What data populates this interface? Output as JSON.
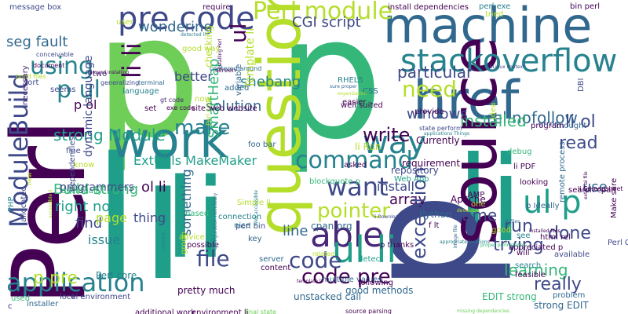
{
  "title": "",
  "palette": {
    "purple": "#440154",
    "deep_purple": "#482878",
    "indigo": "#3e4989",
    "blue": "#31688e",
    "teal_blue": "#26828e",
    "teal": "#1f9e89",
    "green": "#35b779",
    "light_green": "#6ece58",
    "yellow_green": "#b5de2b",
    "yellow": "#fde725"
  },
  "words": [
    {
      "text": "p",
      "color": "#6ece58"
    },
    {
      "text": "p",
      "color": "#35b779"
    },
    {
      "text": "Perl",
      "color": "#440154"
    },
    {
      "text": "li",
      "color": "#1f9e89"
    },
    {
      "text": "li",
      "color": "#1f9e89"
    },
    {
      "text": "li",
      "color": "#1f9e89"
    },
    {
      "text": "p",
      "color": "#3e4989"
    },
    {
      "text": "machine",
      "color": "#31688e"
    },
    {
      "text": "href",
      "color": "#31688e"
    },
    {
      "text": "source",
      "color": "#440154"
    },
    {
      "text": "question",
      "color": "#b5de2b"
    },
    {
      "text": "work",
      "color": "#26828e"
    },
    {
      "text": "stackoverflow",
      "color": "#26828e"
    },
    {
      "text": "pre code",
      "color": "#3e4989"
    },
    {
      "text": "Perl module",
      "color": "#b5de2b"
    },
    {
      "text": "ModuleBuild",
      "color": "#3e4989"
    },
    {
      "text": "ul p",
      "color": "#1f9e89"
    },
    {
      "text": "ul",
      "color": "#440154"
    },
    {
      "text": "able",
      "color": "#482878"
    },
    {
      "text": "application",
      "color": "#26828e"
    },
    {
      "text": "ul li",
      "color": "#1f9e89"
    },
    {
      "text": "way",
      "color": "#26828e"
    },
    {
      "text": "command",
      "color": "#26828e"
    },
    {
      "text": "pointer",
      "color": "#b5de2b"
    },
    {
      "text": "code pre",
      "color": "#440154"
    },
    {
      "text": "file",
      "color": "#3e4989"
    },
    {
      "text": "p ul",
      "color": "#26828e"
    },
    {
      "text": "li li",
      "color": "#440154"
    },
    {
      "text": "using",
      "color": "#26828e"
    },
    {
      "text": "need",
      "color": "#b5de2b"
    },
    {
      "text": "rel nofollow",
      "color": "#31688e"
    },
    {
      "text": "make",
      "color": "#26828e"
    },
    {
      "text": "write",
      "color": "#440154"
    },
    {
      "text": "want",
      "color": "#3e4989"
    },
    {
      "text": "code",
      "color": "#3e4989"
    },
    {
      "text": "p pre",
      "color": "#b5de2b"
    },
    {
      "text": "seg fault",
      "color": "#31688e"
    },
    {
      "text": "wondering",
      "color": "#31688e"
    },
    {
      "text": "CGI script",
      "color": "#3e4989"
    },
    {
      "text": "particular",
      "color": "#3e4989"
    },
    {
      "text": "li ol",
      "color": "#3e4989"
    },
    {
      "text": "strong Module",
      "color": "#1f9e89"
    },
    {
      "text": "shebang",
      "color": "#26828e"
    },
    {
      "text": "solution",
      "color": "#31688e"
    },
    {
      "text": "installed",
      "color": "#35b779"
    },
    {
      "text": "windows",
      "color": "#3e4989"
    },
    {
      "text": "read",
      "color": "#3e4989"
    },
    {
      "text": "Build strong",
      "color": "#35b779"
    },
    {
      "text": "right now",
      "color": "#1f9e89"
    },
    {
      "text": "find",
      "color": "#3e4989"
    },
    {
      "text": "issue",
      "color": "#26828e"
    },
    {
      "text": "thing",
      "color": "#3e4989"
    },
    {
      "text": "array",
      "color": "#440154"
    },
    {
      "text": "exception",
      "color": "#3e4989"
    },
    {
      "text": "run",
      "color": "#3e4989"
    },
    {
      "text": "done",
      "color": "#3e4989"
    },
    {
      "text": "trying",
      "color": "#3e4989"
    },
    {
      "text": "learning",
      "color": "#35b779"
    },
    {
      "text": "really",
      "color": "#3e4989"
    },
    {
      "text": "use",
      "color": "#31688e"
    },
    {
      "text": "time",
      "color": "#3e4989"
    },
    {
      "text": "line",
      "color": "#31688e"
    },
    {
      "text": "ol li",
      "color": "#440154"
    },
    {
      "text": "page",
      "color": "#b5de2b"
    },
    {
      "text": "programmers",
      "color": "#3e4989"
    },
    {
      "text": "install",
      "color": "#3e4989"
    },
    {
      "text": "better",
      "color": "#3e4989"
    },
    {
      "text": "ExtUtils MakeMaker",
      "color": "#1f9e89"
    },
    {
      "text": "Template li",
      "color": "#b5de2b"
    },
    {
      "text": "something",
      "color": "#31688e"
    },
    {
      "text": "SmartHeap",
      "color": "#35b779"
    },
    {
      "text": "p ol",
      "color": "#440154"
    },
    {
      "text": "good methods",
      "color": "#31688e"
    },
    {
      "text": "pretty much",
      "color": "#440154"
    },
    {
      "text": "Perl core",
      "color": "#26828e"
    },
    {
      "text": "unstacked call",
      "color": "#31688e"
    },
    {
      "text": "EDIT strong",
      "color": "#35b779"
    },
    {
      "text": "strong EDIT",
      "color": "#31688e"
    },
    {
      "text": "problem",
      "color": "#31688e"
    },
    {
      "text": "Apache",
      "color": "#440154"
    },
    {
      "text": "Python",
      "color": "#31688e"
    },
    {
      "text": "repository",
      "color": "#3e4989"
    },
    {
      "text": "Currently",
      "color": "#440154"
    },
    {
      "text": "requirement",
      "color": "#440154"
    },
    {
      "text": "cpan org",
      "color": "#31688e"
    },
    {
      "text": "html rel",
      "color": "#440154"
    },
    {
      "text": "li Run",
      "color": "#b5de2b"
    },
    {
      "text": "thought",
      "color": "#31688e"
    },
    {
      "text": "perl exe",
      "color": "#26828e"
    },
    {
      "text": "bin perl",
      "color": "#440154"
    },
    {
      "text": "install dependencies",
      "color": "#440154"
    },
    {
      "text": "message box",
      "color": "#3e4989"
    },
    {
      "text": "require",
      "color": "#440154"
    },
    {
      "text": "RHEL5",
      "color": "#26828e"
    },
    {
      "text": "good way",
      "color": "#b5de2b"
    },
    {
      "text": "CSS",
      "color": "#31688e"
    },
    {
      "text": "LAMP",
      "color": "#440154"
    },
    {
      "text": "easier",
      "color": "#440154"
    },
    {
      "text": "gt code",
      "color": "#482878"
    },
    {
      "text": "exe code",
      "color": "#440154"
    },
    {
      "text": "language",
      "color": "#26828e"
    },
    {
      "text": "terminal",
      "color": "#31688e"
    },
    {
      "text": "site web website",
      "color": "#440154"
    },
    {
      "text": "variable",
      "color": "#31688e"
    },
    {
      "text": "foo bar",
      "color": "#31688e"
    },
    {
      "text": "PHP",
      "color": "#26828e"
    },
    {
      "text": "nice",
      "color": "#26828e"
    },
    {
      "text": "looking",
      "color": "#440154"
    },
    {
      "text": "one",
      "color": "#b5de2b"
    },
    {
      "text": "Web App",
      "color": "#1f9e89"
    },
    {
      "text": "li PDF",
      "color": "#440154"
    },
    {
      "text": "search cpan",
      "color": "#440154"
    },
    {
      "text": "Perl CGI",
      "color": "#3e4989"
    },
    {
      "text": "server",
      "color": "#31688e"
    },
    {
      "text": "content",
      "color": "#440154"
    },
    {
      "text": "available",
      "color": "#3e4989"
    },
    {
      "text": "feasible",
      "color": "#440154"
    },
    {
      "text": "search",
      "color": "#26828e"
    },
    {
      "text": "will",
      "color": "#440154"
    },
    {
      "text": "set",
      "color": "#440154"
    },
    {
      "text": "now",
      "color": "#b5de2b"
    },
    {
      "text": "added",
      "color": "#31688e"
    },
    {
      "text": "provide",
      "color": "#440154"
    },
    {
      "text": "debug",
      "color": "#35b779"
    },
    {
      "text": "asked",
      "color": "#440154"
    },
    {
      "text": "detect",
      "color": "#1f9e89"
    },
    {
      "text": "multiple values",
      "color": "#31688e"
    },
    {
      "text": "additional work",
      "color": "#440154"
    },
    {
      "text": "environment li",
      "color": "#440154"
    },
    {
      "text": "final state",
      "color": "#6ece58"
    },
    {
      "text": "source parsing",
      "color": "#440154"
    },
    {
      "text": "missing dependencies",
      "color": "#6ece58"
    },
    {
      "text": "good",
      "color": "#b5de2b"
    },
    {
      "text": "see",
      "color": "#26828e"
    },
    {
      "text": "p thanks",
      "color": "#440154"
    },
    {
      "text": "f lt",
      "color": "#440154"
    },
    {
      "text": "blockquote p",
      "color": "#35b779"
    },
    {
      "text": "Simple li",
      "color": "#b5de2b"
    },
    {
      "text": "perl bin",
      "color": "#3e4989"
    },
    {
      "text": "connection",
      "color": "#26828e"
    },
    {
      "text": "possible",
      "color": "#440154"
    },
    {
      "text": "key",
      "color": "#31688e"
    },
    {
      "text": "installer",
      "color": "#31688e"
    },
    {
      "text": "local environment",
      "color": "#3e4989"
    },
    {
      "text": "c",
      "color": "#482878"
    },
    {
      "text": "c",
      "color": "#482878"
    },
    {
      "text": "used",
      "color": "#35b779"
    },
    {
      "text": "allocated",
      "color": "#3e4989"
    },
    {
      "text": "seems",
      "color": "#3e4989"
    },
    {
      "text": "sort",
      "color": "#3e4989"
    },
    {
      "text": "document",
      "color": "#440154"
    },
    {
      "text": "build files",
      "color": "#b5de2b"
    },
    {
      "text": "conceivable",
      "color": "#3e4989"
    },
    {
      "text": "screen",
      "color": "#440154"
    },
    {
      "text": "centered around",
      "color": "#31688e"
    },
    {
      "text": "following",
      "color": "#440154"
    },
    {
      "text": "well suited",
      "color": "#440154"
    },
    {
      "text": "organization",
      "color": "#b5de2b"
    },
    {
      "text": "state perform",
      "color": "#3e4989"
    },
    {
      "text": "SELinux context",
      "color": "#3e4989"
    },
    {
      "text": "external file",
      "color": "#440154"
    },
    {
      "text": "remote process",
      "color": "#31688e"
    },
    {
      "text": "Make sure",
      "color": "#440154"
    },
    {
      "text": "developer",
      "color": "#b5de2b"
    },
    {
      "text": "appreciated p",
      "color": "#440154"
    },
    {
      "text": "li Spreadsheet",
      "color": "#440154"
    },
    {
      "text": "related",
      "color": "#b5de2b"
    },
    {
      "text": "dynamic language",
      "color": "#3e4989"
    },
    {
      "text": "necessary",
      "color": "#482878"
    },
    {
      "text": "two",
      "color": "#482878"
    },
    {
      "text": "generalizing",
      "color": "#3e4989"
    },
    {
      "text": "eventually",
      "color": "#35b779"
    },
    {
      "text": "new",
      "color": "#b5de2b"
    },
    {
      "text": "fine",
      "color": "#3e4989"
    },
    {
      "text": "know",
      "color": "#b5de2b"
    },
    {
      "text": "dependencies",
      "color": "#3e4989"
    },
    {
      "text": "group",
      "color": "#b5de2b"
    },
    {
      "text": "based",
      "color": "#35b779"
    },
    {
      "text": "advice",
      "color": "#b5de2b"
    },
    {
      "text": "idea",
      "color": "#b5de2b"
    },
    {
      "text": "program",
      "color": "#440154"
    },
    {
      "text": "error",
      "color": "#3e4989"
    },
    {
      "text": "DBI",
      "color": "#3e4989"
    },
    {
      "text": "user",
      "color": "#b5de2b"
    },
    {
      "text": "tried",
      "color": "#b5de2b"
    },
    {
      "text": "p Ideally",
      "color": "#31688e"
    },
    {
      "text": "checking",
      "color": "#b5de2b"
    },
    {
      "text": "li Download",
      "color": "#3e4989"
    },
    {
      "text": "connect",
      "color": "#26828e"
    },
    {
      "text": "detected li",
      "color": "#26828e"
    },
    {
      "text": "around installing",
      "color": "#440154"
    },
    {
      "text": "configuration necessary",
      "color": "#31688e"
    },
    {
      "text": "installing Perl",
      "color": "#440154"
    },
    {
      "text": "accessible li",
      "color": "#b5de2b"
    },
    {
      "text": "Web accessible",
      "color": "#26828e"
    },
    {
      "text": "applications Things",
      "color": "#26828e"
    },
    {
      "text": "proper permissions",
      "color": "#35b779"
    },
    {
      "text": "appropriate locations",
      "color": "#26828e"
    },
    {
      "text": "template li",
      "color": "#440154"
    },
    {
      "text": "image file",
      "color": "#31688e"
    },
    {
      "text": "sure proper",
      "color": "#31688e"
    },
    {
      "text": "lt files",
      "color": "#31688e"
    },
    {
      "text": "installed files",
      "color": "#440154"
    },
    {
      "text": "Perl code",
      "color": "#b5de2b"
    }
  ]
}
